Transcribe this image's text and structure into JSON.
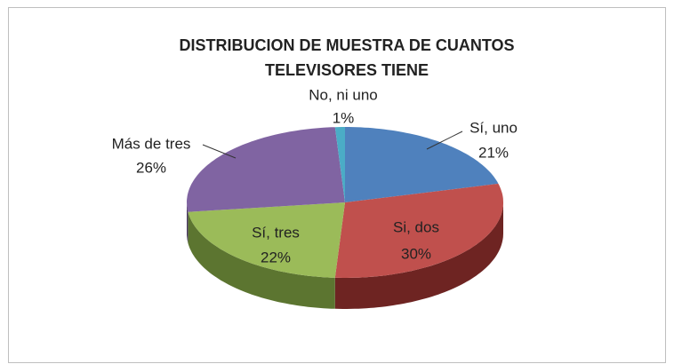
{
  "chart_data": {
    "type": "pie",
    "title": [
      "DISTRIBUCION DE MUESTRA DE CUANTOS",
      "TELEVISORES TIENE"
    ],
    "categories": [
      "Sí, uno",
      "Si, dos",
      "Sí, tres",
      "Más de tres",
      "No, ni uno"
    ],
    "values": [
      21,
      30,
      22,
      26,
      1
    ],
    "value_labels": [
      "21%",
      "30%",
      "22%",
      "26%",
      "1%"
    ],
    "colors": [
      "#4f81bd",
      "#c0504d",
      "#9bbb59",
      "#8064a2",
      "#4bacc6"
    ],
    "side_colors": [
      "#2e4d74",
      "#6e2422",
      "#5c7530",
      "#4b3a63",
      "#2b6f80"
    ]
  }
}
